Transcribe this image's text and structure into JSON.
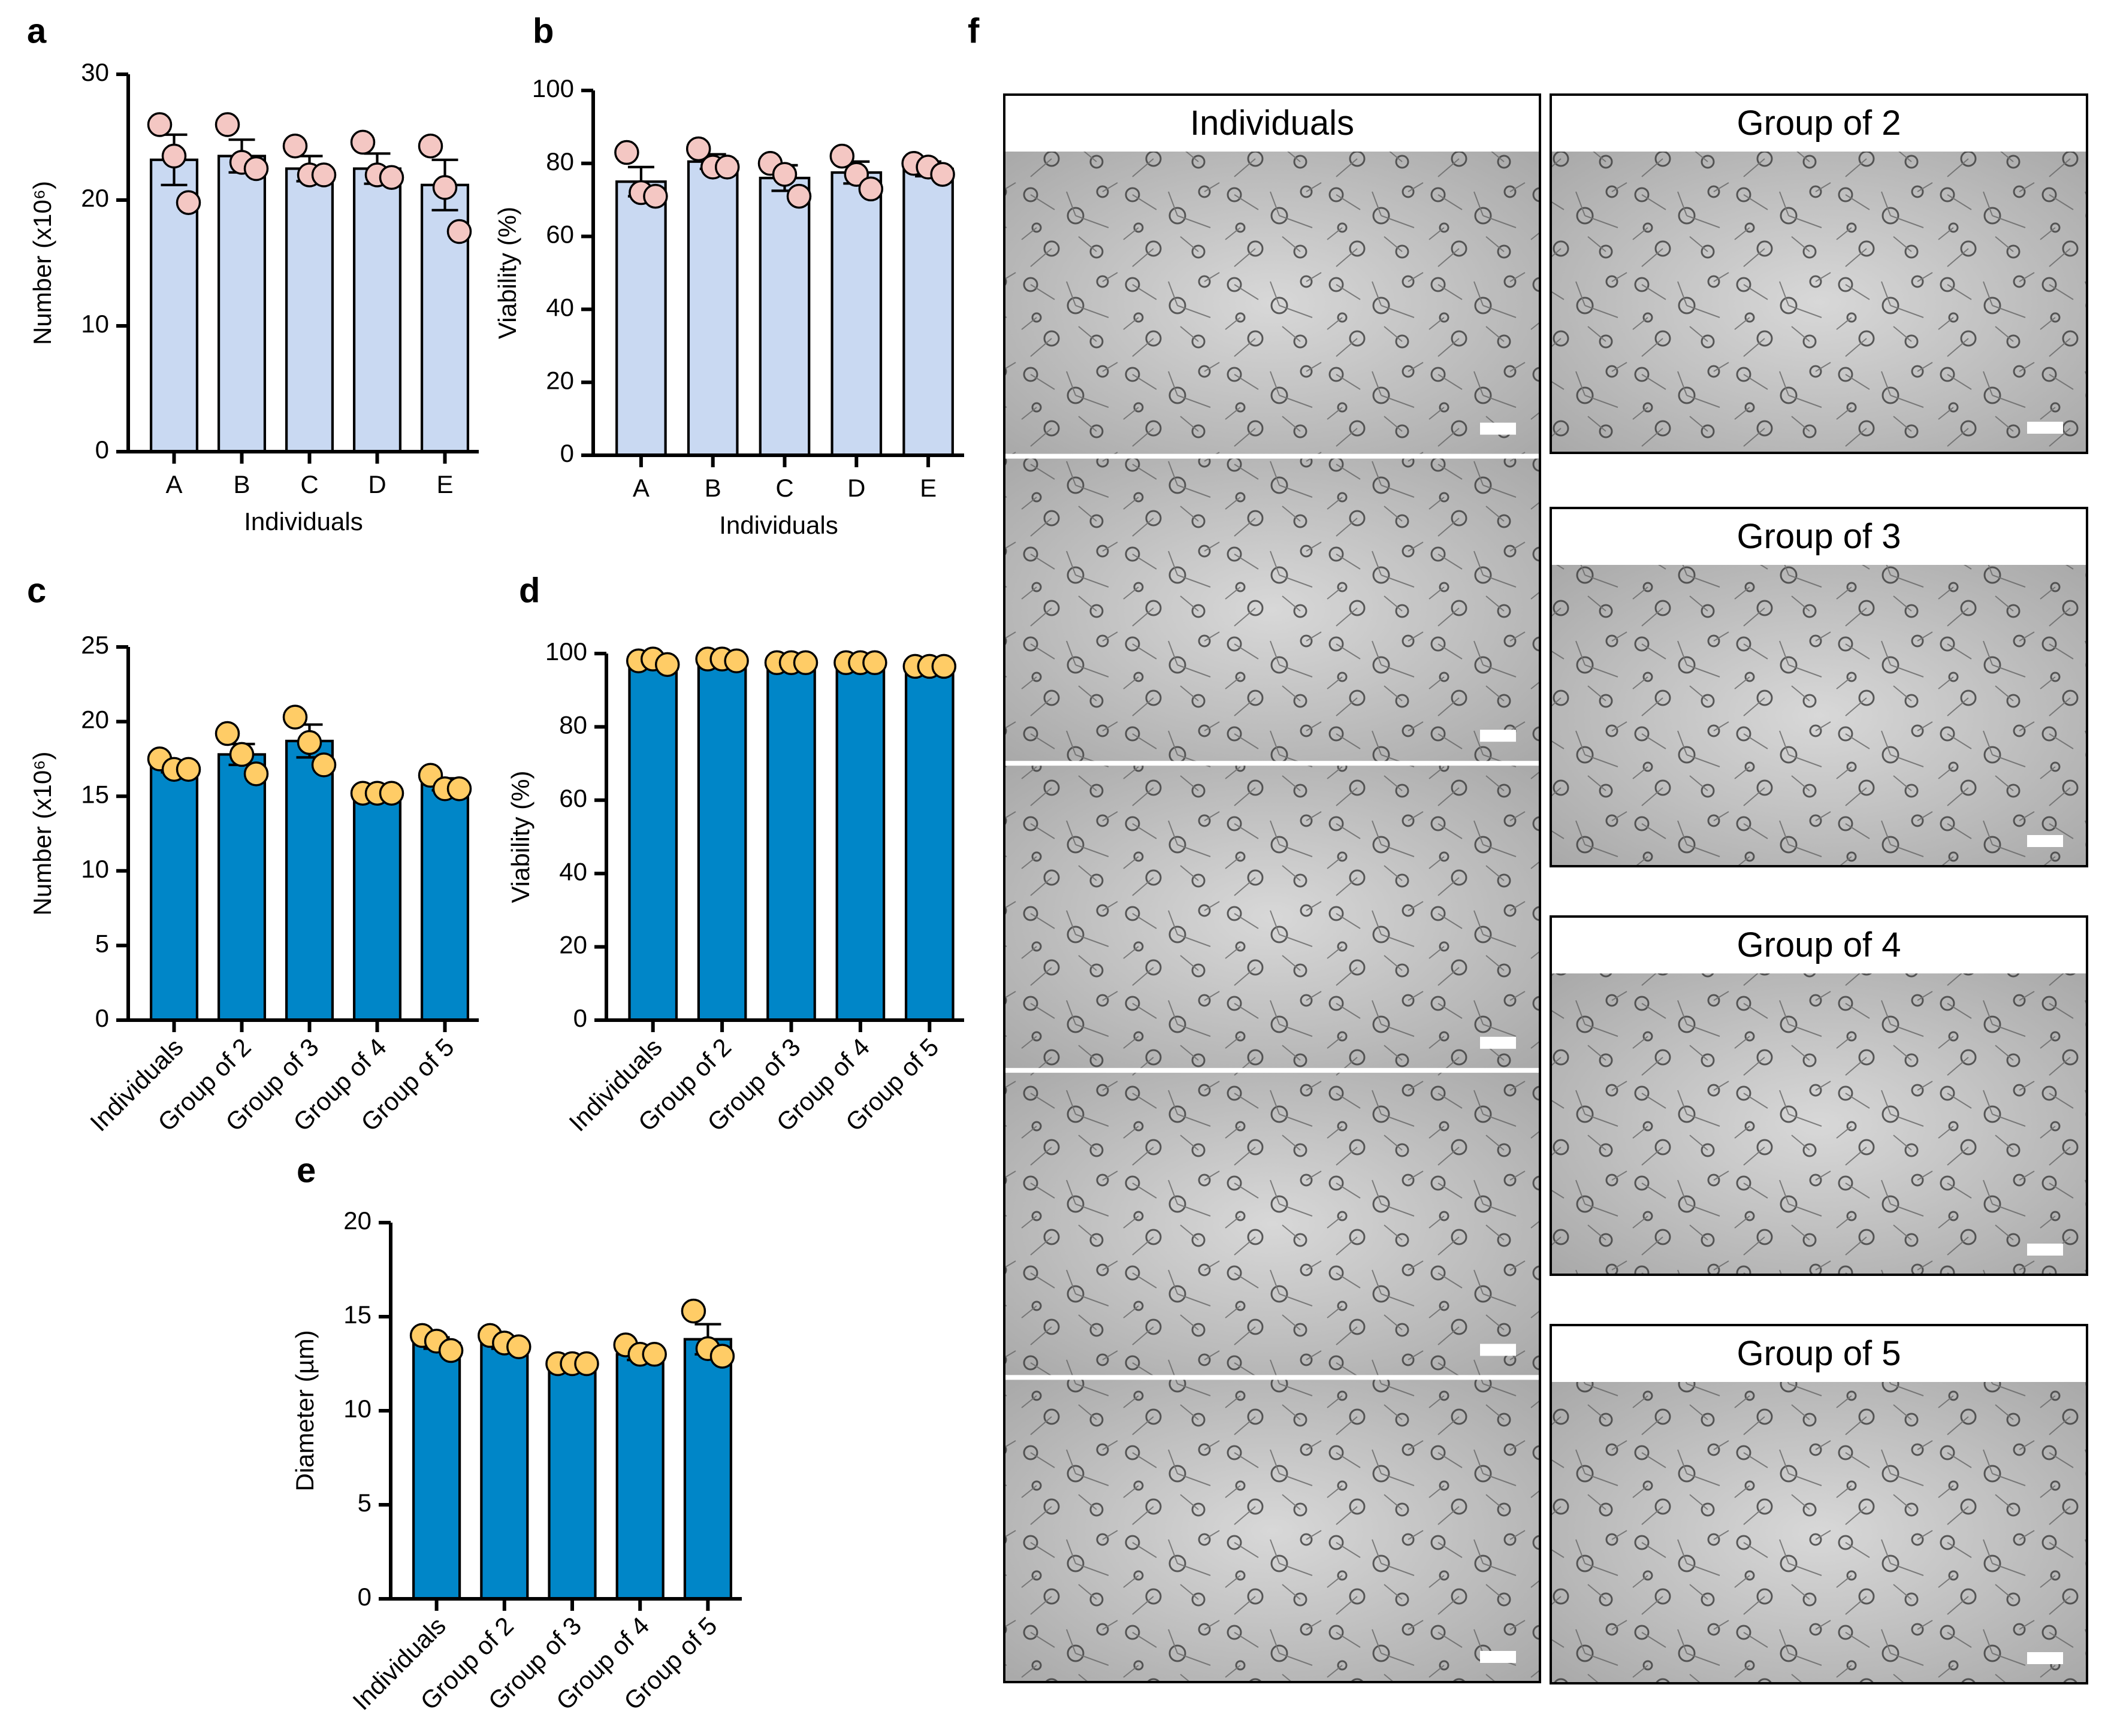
{
  "chart_data": [
    {
      "type": "bar",
      "label": "a",
      "ylabel": "Number (x10⁶)",
      "xlabel": "Individuals",
      "categories": [
        "A",
        "B",
        "C",
        "D",
        "E"
      ],
      "values": [
        23.2,
        23.5,
        22.5,
        22.5,
        21.2
      ],
      "errors": [
        2.0,
        1.3,
        1.0,
        1.2,
        2.0
      ],
      "points": [
        [
          26,
          23.5,
          19.8
        ],
        [
          26,
          23,
          22.5
        ],
        [
          24.3,
          22,
          22
        ],
        [
          24.6,
          22,
          21.8
        ],
        [
          24.3,
          21,
          17.5
        ]
      ],
      "color": "#c9d9f2",
      "point_color": "#f4c7c3",
      "ylim": [
        0,
        30
      ],
      "yticks": [
        0,
        10,
        20,
        30
      ]
    },
    {
      "type": "bar",
      "label": "b",
      "ylabel": "Viability (%)",
      "xlabel": "Individuals",
      "categories": [
        "A",
        "B",
        "C",
        "D",
        "E"
      ],
      "values": [
        75,
        80.5,
        76,
        77.5,
        78.5
      ],
      "errors": [
        4,
        2,
        3.5,
        3,
        2
      ],
      "points": [
        [
          83,
          72,
          71
        ],
        [
          84,
          79,
          79
        ],
        [
          80,
          77,
          71
        ],
        [
          82,
          77,
          73
        ],
        [
          80,
          79,
          77
        ]
      ],
      "color": "#c9d9f2",
      "point_color": "#f4c7c3",
      "ylim": [
        0,
        100
      ],
      "yticks": [
        0,
        20,
        40,
        60,
        80,
        100
      ]
    },
    {
      "type": "bar",
      "label": "c",
      "ylabel": "Number (x10⁶)",
      "categories": [
        "Individuals",
        "Group of 2",
        "Group of 3",
        "Group of 4",
        "Group of 5"
      ],
      "values": [
        17.0,
        17.8,
        18.7,
        15.2,
        15.8
      ],
      "errors": [
        0.4,
        0.7,
        1.1,
        0.05,
        0.4
      ],
      "points": [
        [
          17.5,
          16.8,
          16.8
        ],
        [
          19.2,
          17.8,
          16.5
        ],
        [
          20.3,
          18.6,
          17.1
        ],
        [
          15.2,
          15.2,
          15.2
        ],
        [
          16.4,
          15.5,
          15.5
        ]
      ],
      "color": "#0086c8",
      "point_color": "#ffcc66",
      "ylim": [
        0,
        25
      ],
      "yticks": [
        0,
        5,
        10,
        15,
        20,
        25
      ]
    },
    {
      "type": "bar",
      "label": "d",
      "ylabel": "Viability (%)",
      "categories": [
        "Individuals",
        "Group of 2",
        "Group of 3",
        "Group of 4",
        "Group of 5"
      ],
      "values": [
        97.5,
        98.5,
        97.5,
        97.5,
        96.5
      ],
      "errors": [
        0.5,
        0.3,
        0.2,
        0.2,
        0.2
      ],
      "points": [
        [
          98,
          98.5,
          97
        ],
        [
          98.5,
          98.5,
          98
        ],
        [
          97.5,
          97.5,
          97.5
        ],
        [
          97.5,
          97.5,
          97.5
        ],
        [
          96.5,
          96.5,
          96.5
        ]
      ],
      "color": "#0086c8",
      "point_color": "#ffcc66",
      "ylim": [
        0,
        100
      ],
      "yticks": [
        0,
        20,
        40,
        60,
        80,
        100
      ]
    },
    {
      "type": "bar",
      "label": "e",
      "ylabel": "Diameter (µm)",
      "categories": [
        "Individuals",
        "Group of 2",
        "Group of 3",
        "Group of 4",
        "Group of 5"
      ],
      "values": [
        13.6,
        13.6,
        12.5,
        13.0,
        13.8
      ],
      "errors": [
        0.3,
        0.3,
        0.05,
        0.3,
        0.8
      ],
      "points": [
        [
          14.0,
          13.7,
          13.2
        ],
        [
          14.0,
          13.6,
          13.4
        ],
        [
          12.5,
          12.5,
          12.5
        ],
        [
          13.5,
          13.0,
          13.0
        ],
        [
          15.3,
          13.3,
          12.9
        ]
      ],
      "color": "#0086c8",
      "point_color": "#ffcc66",
      "ylim": [
        0,
        20
      ],
      "yticks": [
        0,
        5,
        10,
        15,
        20
      ]
    }
  ],
  "panel_f": {
    "label": "f",
    "headers": [
      "Individuals",
      "Group of 2",
      "Group of 3",
      "Group of 4",
      "Group of 5"
    ]
  }
}
